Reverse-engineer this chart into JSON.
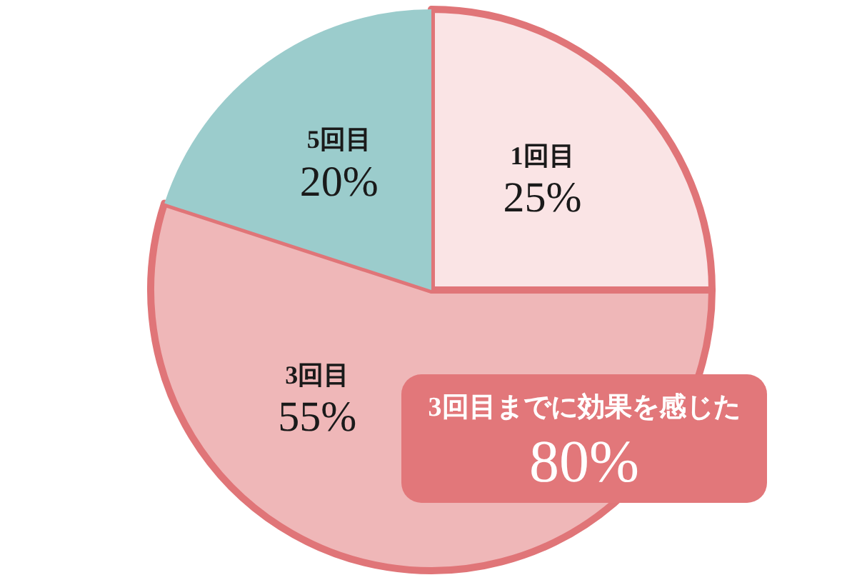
{
  "chart_data": {
    "type": "pie",
    "categories": [
      "1回目",
      "3回目",
      "5回目"
    ],
    "values": [
      25,
      55,
      20
    ],
    "colors": [
      "#fae4e5",
      "#efb7b8",
      "#9bcccc"
    ],
    "value_labels": [
      "25%",
      "55%",
      "20%"
    ],
    "annotations": [
      "3回目までに効果を感じた",
      "80%"
    ]
  }
}
